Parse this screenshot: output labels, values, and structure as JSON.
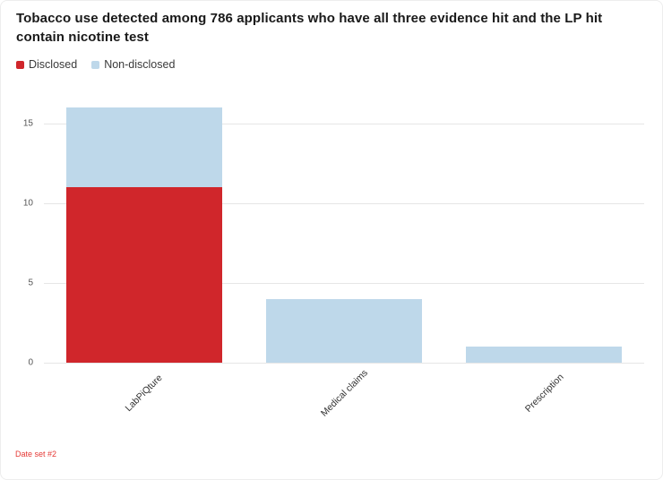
{
  "page": {
    "title": "Tobacco use detected among 786 applicants who have all three evidence hit and the LP hit contain nicotine test",
    "footer": "Date set #2"
  },
  "legend": {
    "items": [
      {
        "label": "Disclosed",
        "color": "#d0262b"
      },
      {
        "label": "Non-disclosed",
        "color": "#bed8ea"
      }
    ]
  },
  "chart_data": {
    "type": "bar",
    "stacked": true,
    "title": "Tobacco use detected among 786 applicants who have all three evidence hit and the LP hit contain nicotine test",
    "categories": [
      "LabPiQture",
      "Medical claims",
      "Prescription"
    ],
    "series": [
      {
        "name": "Disclosed",
        "color": "#d0262b",
        "values": [
          11,
          0,
          0
        ]
      },
      {
        "name": "Non-disclosed",
        "color": "#bed8ea",
        "values": [
          5,
          4,
          1
        ]
      }
    ],
    "totals": [
      16,
      4,
      1
    ],
    "xlabel": "",
    "ylabel": "",
    "ylim": [
      0,
      16.6
    ],
    "yticks": [
      0,
      5,
      10,
      15
    ],
    "grid": true,
    "legend_position": "top-left"
  }
}
